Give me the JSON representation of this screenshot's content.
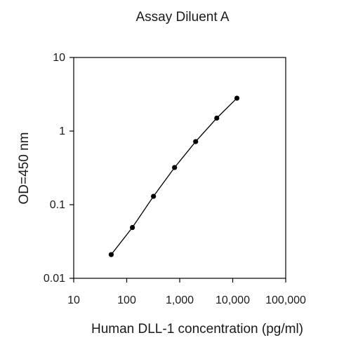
{
  "chart_data": {
    "type": "line",
    "title": "Assay Diluent A",
    "xlabel": "Human DLL-1 concentration (pg/ml)",
    "ylabel": "OD=450 nm",
    "x_scale": "log",
    "y_scale": "log",
    "xlim": [
      10,
      100000
    ],
    "ylim": [
      0.01,
      10
    ],
    "x_ticks": [
      {
        "value": 10,
        "label": "10"
      },
      {
        "value": 100,
        "label": "100"
      },
      {
        "value": 1000,
        "label": "1,000"
      },
      {
        "value": 10000,
        "label": "10,000"
      },
      {
        "value": 100000,
        "label": "100,000"
      }
    ],
    "y_ticks": [
      {
        "value": 0.01,
        "label": "0.01"
      },
      {
        "value": 0.1,
        "label": "0.1"
      },
      {
        "value": 1,
        "label": "1"
      },
      {
        "value": 10,
        "label": "10"
      }
    ],
    "grid": false,
    "legend": "none",
    "color": "#000000",
    "series": [
      {
        "x": [
          51,
          128,
          320,
          800,
          2000,
          5000,
          12000
        ],
        "y": [
          0.021,
          0.049,
          0.13,
          0.32,
          0.72,
          1.5,
          2.8
        ]
      }
    ]
  }
}
